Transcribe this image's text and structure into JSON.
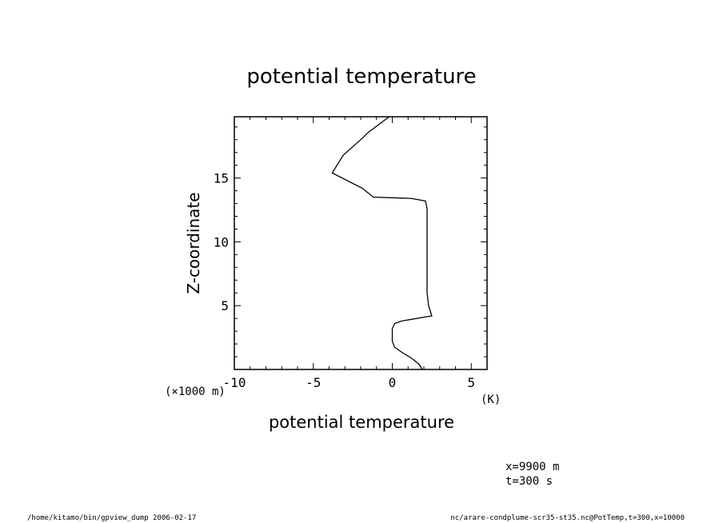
{
  "chart_data": {
    "type": "line",
    "title": "potential temperature",
    "xlabel": "potential temperature",
    "x_unit": "(K)",
    "ylabel": "Z-coordinate",
    "y_unit": "(×1000 m)",
    "xlim": [
      -10,
      6
    ],
    "ylim": [
      0,
      19.8
    ],
    "xticks": [
      -10,
      -5,
      0,
      5
    ],
    "xtick_labels": [
      "-10",
      "-5",
      "0",
      "5"
    ],
    "yticks": [
      5,
      10,
      15
    ],
    "ytick_labels": [
      "5",
      "10",
      "15"
    ],
    "grid": false,
    "series": [
      {
        "x": [
          1.9,
          1.7,
          1.2,
          0.6,
          0.15,
          0.0,
          0.0,
          0.15,
          0.6,
          2.5,
          2.3,
          2.2,
          2.2,
          2.2,
          2.2,
          2.2,
          2.2,
          2.2,
          2.2,
          2.1,
          1.2,
          -1.2,
          -1.9,
          -3.8,
          -3.1,
          -2.0,
          -1.5,
          -0.2
        ],
        "y": [
          0.0,
          0.4,
          0.9,
          1.35,
          1.75,
          2.2,
          3.2,
          3.6,
          3.8,
          4.2,
          5.0,
          6.0,
          7.0,
          8.0,
          9.0,
          10.0,
          11.0,
          12.0,
          12.6,
          13.2,
          13.4,
          13.5,
          14.2,
          15.4,
          16.8,
          18.0,
          18.6,
          19.8
        ]
      }
    ]
  },
  "annotations": {
    "position_x": "x=9900  m",
    "time": "t=300  s"
  },
  "footer": {
    "left": "/home/kitamo/bin/gpview_dump  2006-02-17",
    "right": "nc/arare-condplume-scr35-st35.nc@PotTemp,t=300,x=10000"
  }
}
